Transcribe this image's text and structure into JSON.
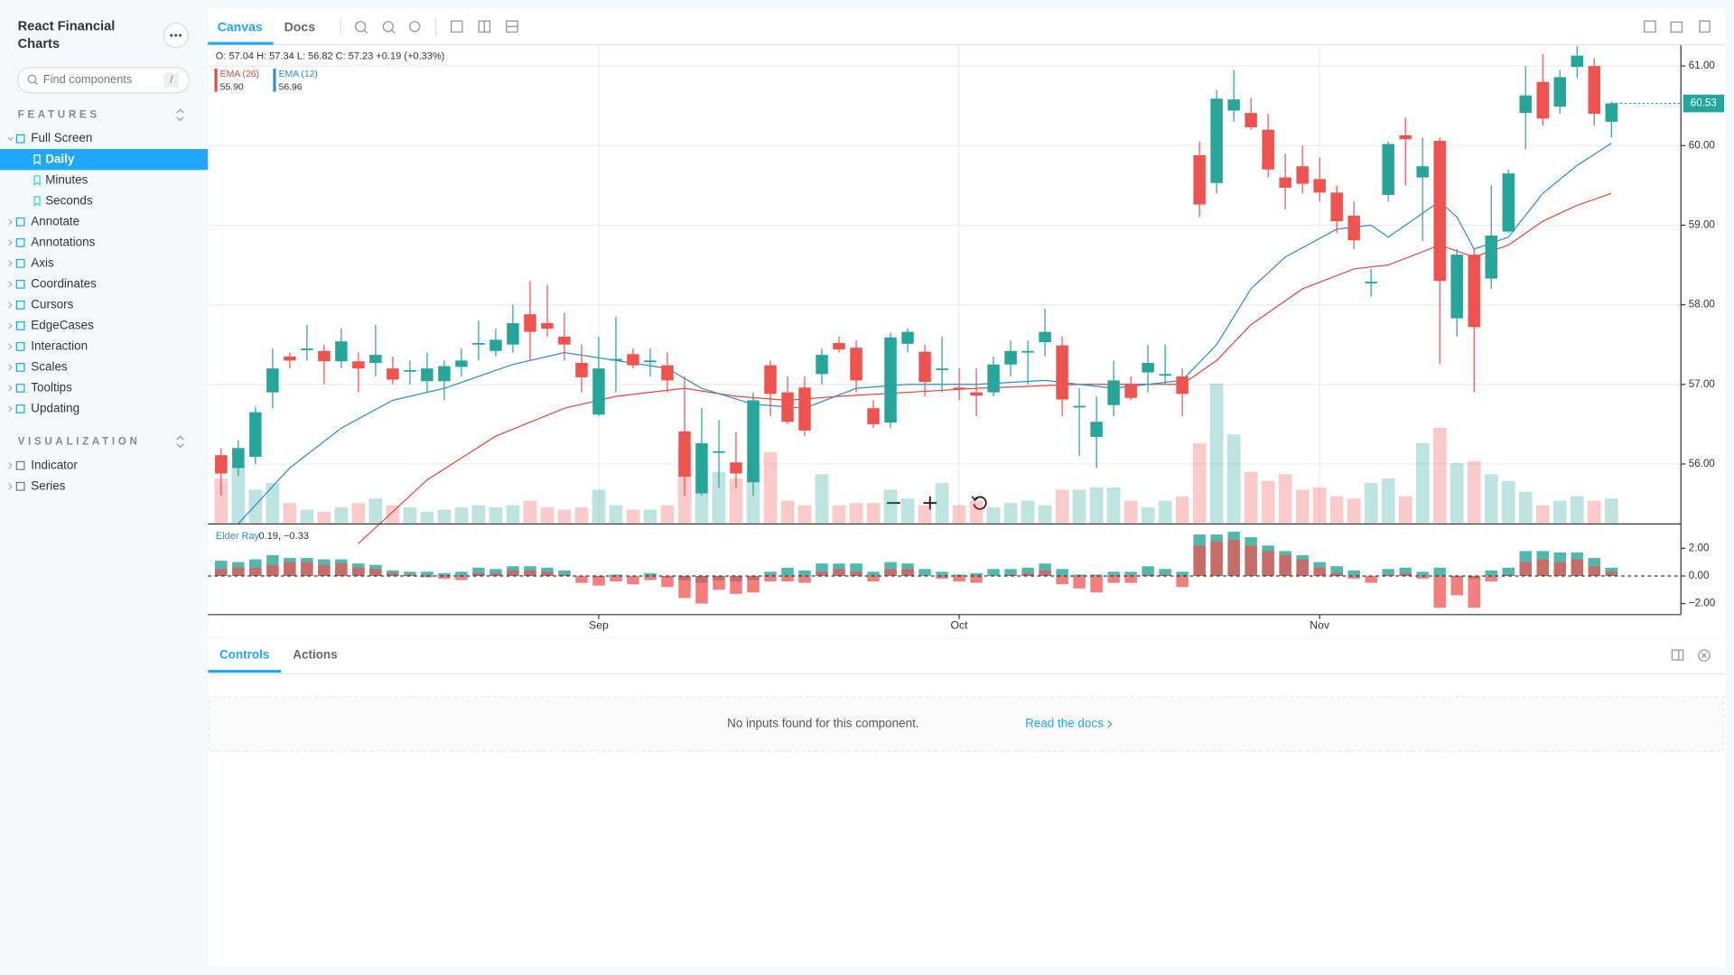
{
  "sidebar": {
    "title_line1": "React Financial",
    "title_line2": "Charts",
    "search_placeholder": "Find components",
    "search_shortcut": "/",
    "sections": [
      {
        "title": "FEATURES",
        "items": [
          {
            "label": "Full Screen",
            "children": [
              {
                "label": "Daily",
                "selected": true
              },
              {
                "label": "Minutes"
              },
              {
                "label": "Seconds"
              }
            ]
          },
          {
            "label": "Annotate"
          },
          {
            "label": "Annotations"
          },
          {
            "label": "Axis"
          },
          {
            "label": "Coordinates"
          },
          {
            "label": "Cursors"
          },
          {
            "label": "EdgeCases"
          },
          {
            "label": "Interaction"
          },
          {
            "label": "Scales"
          },
          {
            "label": "Tooltips"
          },
          {
            "label": "Updating"
          }
        ]
      },
      {
        "title": "VISUALIZATION",
        "items": [
          {
            "label": "Indicator"
          },
          {
            "label": "Series"
          }
        ]
      }
    ]
  },
  "toolbar": {
    "tabs": [
      "Canvas",
      "Docs"
    ]
  },
  "panel": {
    "tabs": [
      "Controls",
      "Actions"
    ],
    "message": "No inputs found for this component.",
    "link": "Read the docs"
  },
  "chart_data": {
    "type": "candlestick",
    "ohlc_tooltip": "O: 57.04 H: 57.34 L: 56.82 C: 57.23 +0.19 (+0.33%)",
    "up_color": "#26a69a",
    "down_color": "#ef5350",
    "open": [
      56.11,
      55.95,
      56.09,
      56.9,
      57.35,
      57.43,
      57.42,
      57.29,
      57.29,
      57.27,
      57.2,
      57.17,
      57.04,
      57.04,
      57.22,
      57.5,
      57.42,
      57.5,
      57.88,
      57.77,
      57.6,
      57.27,
      56.62,
      57.3,
      57.38,
      57.28,
      57.24,
      56.41,
      55.63,
      56.15,
      56.02,
      55.77,
      57.24,
      56.9,
      56.96,
      57.13,
      57.52,
      57.46,
      56.7,
      56.52,
      57.51,
      57.41,
      57.18,
      56.96,
      56.9,
      56.9,
      57.25,
      57.4,
      57.53,
      57.49,
      56.72,
      56.34,
      56.74,
      57.0,
      57.15,
      57.12,
      57.1,
      59.88,
      59.53,
      60.44,
      60.41,
      60.2,
      59.6,
      59.74,
      59.58,
      59.41,
      59.12,
      58.27,
      59.38,
      60.13,
      59.6,
      60.06,
      57.83,
      58.63,
      58.33,
      58.92,
      60.41,
      60.8,
      60.49,
      60.99,
      61.0,
      60.3
    ],
    "high": [
      56.2,
      56.3,
      56.72,
      57.45,
      57.4,
      57.75,
      57.5,
      57.7,
      57.4,
      57.75,
      57.35,
      57.3,
      57.4,
      57.3,
      57.45,
      57.8,
      57.7,
      58.0,
      58.3,
      58.25,
      57.9,
      57.5,
      57.6,
      57.85,
      57.45,
      57.45,
      57.4,
      57.1,
      56.7,
      56.55,
      56.4,
      56.9,
      57.3,
      57.1,
      57.1,
      57.45,
      57.6,
      57.55,
      56.8,
      57.65,
      57.7,
      57.5,
      57.6,
      57.2,
      57.2,
      57.35,
      57.55,
      57.55,
      57.95,
      57.6,
      56.95,
      56.85,
      57.3,
      57.1,
      57.5,
      57.5,
      57.2,
      60.05,
      60.7,
      60.95,
      60.6,
      60.4,
      59.9,
      60.0,
      59.85,
      59.5,
      59.3,
      58.45,
      60.05,
      60.35,
      60.1,
      60.1,
      58.7,
      58.7,
      59.5,
      59.7,
      61.0,
      61.15,
      60.95,
      61.25,
      61.1,
      60.55
    ],
    "low": [
      55.6,
      55.85,
      56.0,
      56.7,
      57.2,
      57.3,
      57.0,
      57.2,
      56.9,
      57.1,
      57.0,
      57.0,
      56.9,
      56.8,
      57.1,
      57.3,
      57.35,
      57.4,
      57.3,
      57.6,
      57.3,
      56.9,
      56.6,
      56.9,
      57.2,
      57.1,
      56.9,
      55.6,
      55.6,
      55.7,
      55.7,
      55.6,
      56.6,
      56.5,
      56.35,
      57.0,
      57.4,
      56.9,
      56.45,
      56.45,
      57.4,
      56.85,
      56.9,
      56.8,
      56.6,
      56.85,
      57.1,
      57.0,
      57.35,
      56.6,
      56.1,
      55.95,
      56.6,
      56.8,
      56.9,
      57.0,
      56.6,
      59.1,
      59.4,
      60.3,
      60.2,
      59.6,
      59.2,
      59.4,
      59.3,
      58.9,
      58.7,
      58.1,
      59.3,
      59.5,
      58.8,
      57.25,
      57.6,
      56.9,
      58.2,
      58.9,
      59.95,
      60.25,
      60.4,
      60.85,
      60.25,
      60.1
    ],
    "close": [
      55.88,
      56.2,
      56.65,
      57.2,
      57.3,
      57.45,
      57.29,
      57.54,
      57.2,
      57.37,
      57.06,
      57.18,
      57.2,
      57.23,
      57.3,
      57.52,
      57.56,
      57.77,
      57.66,
      57.7,
      57.5,
      57.09,
      57.2,
      57.32,
      57.24,
      57.3,
      57.05,
      55.84,
      56.26,
      56.16,
      55.88,
      56.8,
      56.88,
      56.53,
      56.42,
      57.37,
      57.44,
      57.05,
      56.5,
      57.59,
      57.66,
      57.03,
      57.2,
      56.94,
      56.86,
      57.25,
      57.42,
      57.42,
      57.66,
      56.81,
      56.73,
      56.53,
      57.05,
      56.83,
      57.27,
      57.13,
      56.88,
      59.26,
      60.59,
      60.58,
      60.23,
      59.7,
      59.47,
      59.52,
      59.41,
      59.05,
      58.81,
      58.29,
      60.02,
      60.08,
      59.74,
      58.3,
      58.63,
      57.72,
      58.87,
      59.65,
      60.63,
      60.34,
      60.86,
      61.13,
      60.4,
      60.53
    ],
    "xlim": [
      -0.77,
      85.05
    ],
    "xticks": [
      {
        "value": 22,
        "label": "Sep"
      },
      {
        "value": 43,
        "label": "Oct"
      },
      {
        "value": 64,
        "label": "Nov"
      }
    ],
    "ylim": [
      55.26,
      61.26
    ],
    "yticks": [
      {
        "value": 56,
        "label": "56.00"
      },
      {
        "value": 57,
        "label": "57.00"
      },
      {
        "value": 58,
        "label": "58.00"
      },
      {
        "value": 59,
        "label": "59.00"
      },
      {
        "value": 60,
        "label": "60.00"
      },
      {
        "value": 61,
        "label": "61.00"
      }
    ],
    "grid": true,
    "last_price": {
      "value": 60.53,
      "label": "60.53"
    },
    "indicators": [
      {
        "name": "EMA (26)",
        "legend_value": "55.90",
        "color": "#e2483d",
        "x": [
          8,
          12,
          16,
          20,
          23,
          27,
          30,
          33,
          36,
          40,
          44,
          50,
          56,
          58,
          60,
          63,
          66,
          68,
          71,
          73,
          75,
          77,
          79,
          81
        ],
        "values": [
          55.0,
          55.8,
          56.35,
          56.7,
          56.85,
          56.95,
          56.85,
          56.8,
          56.85,
          56.9,
          56.95,
          57.0,
          57.0,
          57.3,
          57.75,
          58.2,
          58.45,
          58.5,
          58.75,
          58.6,
          58.75,
          59.05,
          59.25,
          59.4
        ]
      },
      {
        "name": "EMA (12)",
        "legend_value": "56.96",
        "color": "#2e8bd6",
        "x": [
          1,
          4,
          7,
          10,
          13,
          17,
          20,
          23,
          26,
          28,
          31,
          34,
          37,
          40,
          44,
          48,
          52,
          56,
          58,
          60,
          62,
          65,
          67,
          68,
          71,
          72,
          73,
          75,
          77,
          79,
          81
        ],
        "values": [
          55.25,
          55.95,
          56.45,
          56.8,
          56.95,
          57.25,
          57.4,
          57.3,
          57.2,
          56.95,
          56.75,
          56.7,
          56.95,
          57.0,
          57.0,
          57.05,
          56.95,
          57.05,
          57.5,
          58.2,
          58.6,
          58.95,
          59.0,
          58.85,
          59.3,
          59.1,
          58.7,
          58.85,
          59.4,
          59.75,
          60.03
        ]
      }
    ],
    "volume": {
      "values": [
        40,
        50,
        30,
        36,
        18,
        12,
        10,
        14,
        18,
        22,
        16,
        14,
        10,
        12,
        14,
        16,
        14,
        16,
        20,
        14,
        12,
        14,
        30,
        16,
        12,
        12,
        16,
        70,
        50,
        46,
        40,
        50,
        64,
        20,
        16,
        44,
        16,
        18,
        18,
        30,
        22,
        16,
        36,
        16,
        20,
        14,
        18,
        20,
        16,
        30,
        30,
        32,
        32,
        20,
        14,
        20,
        24,
        72,
        126,
        80,
        46,
        38,
        44,
        30,
        32,
        24,
        22,
        36,
        40,
        24,
        72,
        86,
        54,
        56,
        44,
        38,
        28,
        16,
        20,
        24,
        20,
        22
      ]
    },
    "elder_ray": {
      "label": "Elder Ray",
      "value_text": "0.19, −0.33",
      "bull": [
        1.1,
        1.0,
        1.2,
        1.5,
        1.3,
        1.3,
        1.2,
        1.2,
        0.9,
        0.8,
        0.4,
        0.3,
        0.3,
        0.2,
        0.3,
        0.6,
        0.5,
        0.7,
        0.7,
        0.6,
        0.4,
        0.0,
        -0.1,
        0.1,
        0.0,
        0.2,
        -0.1,
        -0.3,
        -0.5,
        -0.3,
        -0.4,
        -0.3,
        0.3,
        0.6,
        0.4,
        0.9,
        0.9,
        0.9,
        0.3,
        1.0,
        0.9,
        0.5,
        0.3,
        0.1,
        0.2,
        0.5,
        0.5,
        0.6,
        0.9,
        0.5,
        0.1,
        0.1,
        0.3,
        0.3,
        0.7,
        0.5,
        0.3,
        3.0,
        3.0,
        3.2,
        2.8,
        2.2,
        1.8,
        1.5,
        1.0,
        0.7,
        0.4,
        0.0,
        0.5,
        0.6,
        0.3,
        0.6,
        -0.1,
        -0.2,
        0.4,
        0.6,
        1.8,
        1.8,
        1.7,
        1.7,
        1.3,
        0.6
      ],
      "bear": [
        0.5,
        0.6,
        0.6,
        0.8,
        1.0,
        1.0,
        0.8,
        0.9,
        0.6,
        0.5,
        0.2,
        0.1,
        -0.1,
        -0.2,
        -0.3,
        0.2,
        0.2,
        0.4,
        0.4,
        0.3,
        0.1,
        -0.5,
        -0.7,
        -0.4,
        -0.6,
        -0.3,
        -0.8,
        -1.6,
        -2.0,
        -1.0,
        -1.3,
        -1.2,
        -0.4,
        -0.4,
        -0.5,
        0.3,
        0.5,
        0.3,
        -0.4,
        0.5,
        0.5,
        0.0,
        -0.2,
        -0.4,
        -0.5,
        0.0,
        0.1,
        0.2,
        0.4,
        -0.6,
        -0.9,
        -1.2,
        -0.5,
        -0.5,
        0.1,
        0.1,
        -0.8,
        2.2,
        2.5,
        2.6,
        2.2,
        1.8,
        1.5,
        1.2,
        0.6,
        0.2,
        -0.2,
        -0.5,
        0.1,
        0.2,
        -0.2,
        -2.3,
        -1.4,
        -2.3,
        -0.4,
        0.1,
        1.0,
        1.2,
        1.0,
        1.2,
        0.7,
        0.3
      ],
      "ylim": [
        -2.8,
        3.6
      ],
      "yticks": [
        {
          "value": 2,
          "label": "2.00"
        },
        {
          "value": 0,
          "label": "0.00"
        },
        {
          "value": -2,
          "label": "−2.00"
        }
      ]
    }
  }
}
